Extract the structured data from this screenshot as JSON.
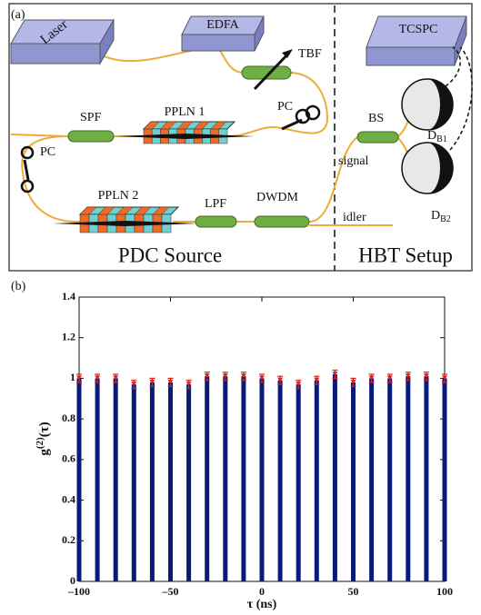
{
  "panel_a": {
    "label": "(a)",
    "diagram": {
      "laser": "Laser",
      "edfa": "EDFA",
      "tbf": "TBF",
      "pc_top": "PC",
      "spf": "SPF",
      "ppln1": "PPLN 1",
      "pc_left": "PC",
      "ppln2": "PPLN 2",
      "lpf": "LPF",
      "dwdm": "DWDM",
      "idler": "idler",
      "signal": "signal",
      "bs": "BS",
      "tcspc": "TCSPC",
      "db1": {
        "base": "D",
        "sub": "B1"
      },
      "db2": {
        "base": "D",
        "sub": "B2"
      },
      "pdc_source": "PDC Source",
      "hbt_setup": "HBT Setup"
    }
  },
  "chart_data": {
    "type": "bar",
    "panel_label": "(b)",
    "xlabel": "τ (ns)",
    "ylabel": {
      "base": "g",
      "sup": "(2)",
      "rest": "(τ)"
    },
    "x": [
      -100,
      -90,
      -80,
      -70,
      -60,
      -50,
      -40,
      -30,
      -20,
      -10,
      0,
      10,
      20,
      30,
      40,
      50,
      60,
      70,
      80,
      90,
      100
    ],
    "values": [
      1.0,
      1.0,
      1.0,
      0.97,
      0.98,
      0.98,
      0.97,
      1.01,
      1.01,
      1.01,
      1.0,
      0.99,
      0.97,
      0.99,
      1.02,
      0.98,
      1.0,
      1.0,
      1.01,
      1.01,
      1.0
    ],
    "errors": [
      0.02,
      0.02,
      0.02,
      0.02,
      0.02,
      0.02,
      0.02,
      0.02,
      0.02,
      0.02,
      0.02,
      0.02,
      0.02,
      0.02,
      0.02,
      0.02,
      0.02,
      0.02,
      0.02,
      0.02,
      0.02
    ],
    "color": "#0a1a7a",
    "error_color": "#e0201c",
    "xlim": [
      -100,
      100
    ],
    "ylim": [
      0,
      1.4
    ],
    "xticks": [
      {
        "value": -100,
        "label": "–100"
      },
      {
        "value": -50,
        "label": "–50"
      },
      0,
      50,
      100
    ],
    "yticks": [
      0,
      0.2,
      0.4,
      0.6,
      0.8,
      1,
      1.2,
      1.4
    ]
  }
}
